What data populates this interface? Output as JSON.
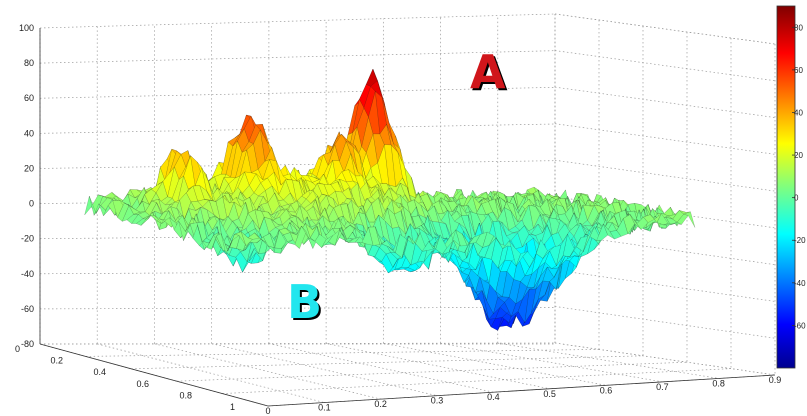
{
  "chart_data": {
    "type": "surface",
    "title": "",
    "xlabel": "",
    "ylabel": "",
    "zlabel": "",
    "colormap": "jet",
    "zlim": [
      -80,
      100
    ],
    "xlim": [
      0,
      0.9
    ],
    "ylim": [
      0,
      1
    ],
    "grid": true,
    "z_ticks": [
      "100",
      "80",
      "60",
      "40",
      "20",
      "0",
      "-20",
      "-40",
      "-60",
      "-80"
    ],
    "x_ticks": [
      "0",
      "0.1",
      "0.2",
      "0.3",
      "0.4",
      "0.5",
      "0.6",
      "0.7",
      "0.8",
      "0.9"
    ],
    "y_ticks": [
      "0",
      "0.2",
      "0.4",
      "0.6",
      "0.8",
      "1"
    ],
    "colorbar": {
      "ticks": [
        "80",
        "60",
        "40",
        "20",
        "0",
        "-20",
        "-40",
        "-60"
      ],
      "range": [
        -80,
        90
      ]
    },
    "features": [
      {
        "label": "A",
        "x": 0.48,
        "y": 0.15,
        "z": 78,
        "color": "#d0161b"
      },
      {
        "label": "B",
        "x": 0.55,
        "y": 0.9,
        "z": -60,
        "color": "#22e6ee"
      }
    ]
  }
}
